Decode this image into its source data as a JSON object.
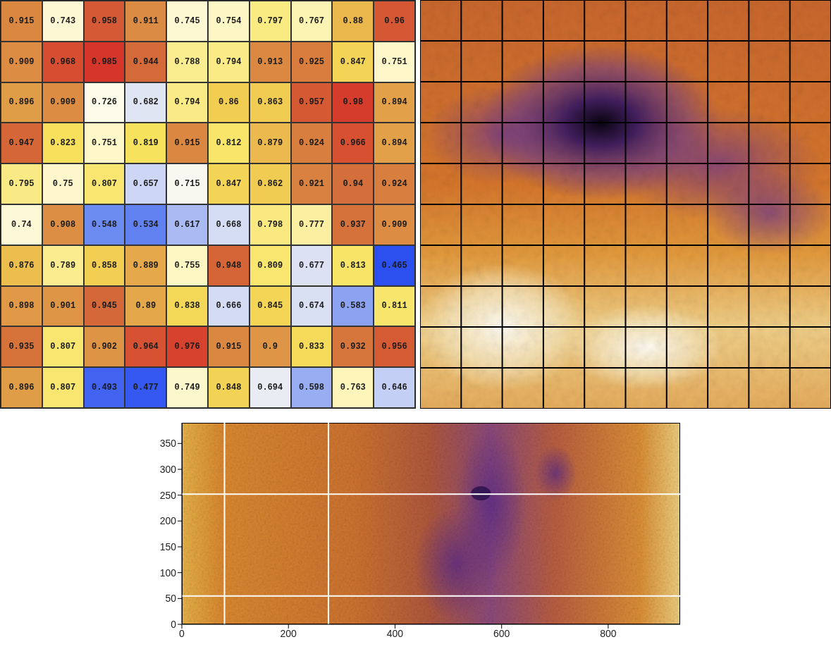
{
  "chart_data": [
    {
      "type": "heatmap",
      "cells": [
        [
          0.915,
          0.743,
          0.958,
          0.911,
          0.745,
          0.754,
          0.797,
          0.767,
          0.88,
          0.96
        ],
        [
          0.909,
          0.968,
          0.985,
          0.944,
          0.788,
          0.794,
          0.913,
          0.925,
          0.847,
          0.751
        ],
        [
          0.896,
          0.909,
          0.726,
          0.682,
          0.794,
          0.86,
          0.863,
          0.957,
          0.98,
          0.894
        ],
        [
          0.947,
          0.823,
          0.751,
          0.819,
          0.915,
          0.812,
          0.879,
          0.924,
          0.966,
          0.894
        ],
        [
          0.795,
          0.75,
          0.807,
          0.657,
          0.715,
          0.847,
          0.862,
          0.921,
          0.94,
          0.924
        ],
        [
          0.74,
          0.908,
          0.548,
          0.534,
          0.617,
          0.668,
          0.798,
          0.777,
          0.937,
          0.909
        ],
        [
          0.876,
          0.789,
          0.858,
          0.889,
          0.755,
          0.948,
          0.809,
          0.677,
          0.813,
          0.465
        ],
        [
          0.898,
          0.901,
          0.945,
          0.89,
          0.838,
          0.666,
          0.845,
          0.674,
          0.583,
          0.811
        ],
        [
          0.935,
          0.807,
          0.902,
          0.964,
          0.976,
          0.915,
          0.9,
          0.833,
          0.932,
          0.956
        ],
        [
          0.896,
          0.807,
          0.493,
          0.477,
          0.749,
          0.848,
          0.694,
          0.598,
          0.763,
          0.646
        ]
      ],
      "data_labels": true
    },
    {
      "type": "image",
      "grid": true
    },
    {
      "type": "image",
      "xlim": [
        0,
        935
      ],
      "ylim": [
        0,
        390
      ],
      "xticks": [
        0,
        200,
        400,
        600,
        800
      ],
      "yticks": [
        0,
        50,
        100,
        150,
        200,
        250,
        300,
        350
      ],
      "vlines": [
        80,
        275
      ],
      "hlines": [
        55,
        252
      ],
      "color": "#ffffff"
    }
  ]
}
